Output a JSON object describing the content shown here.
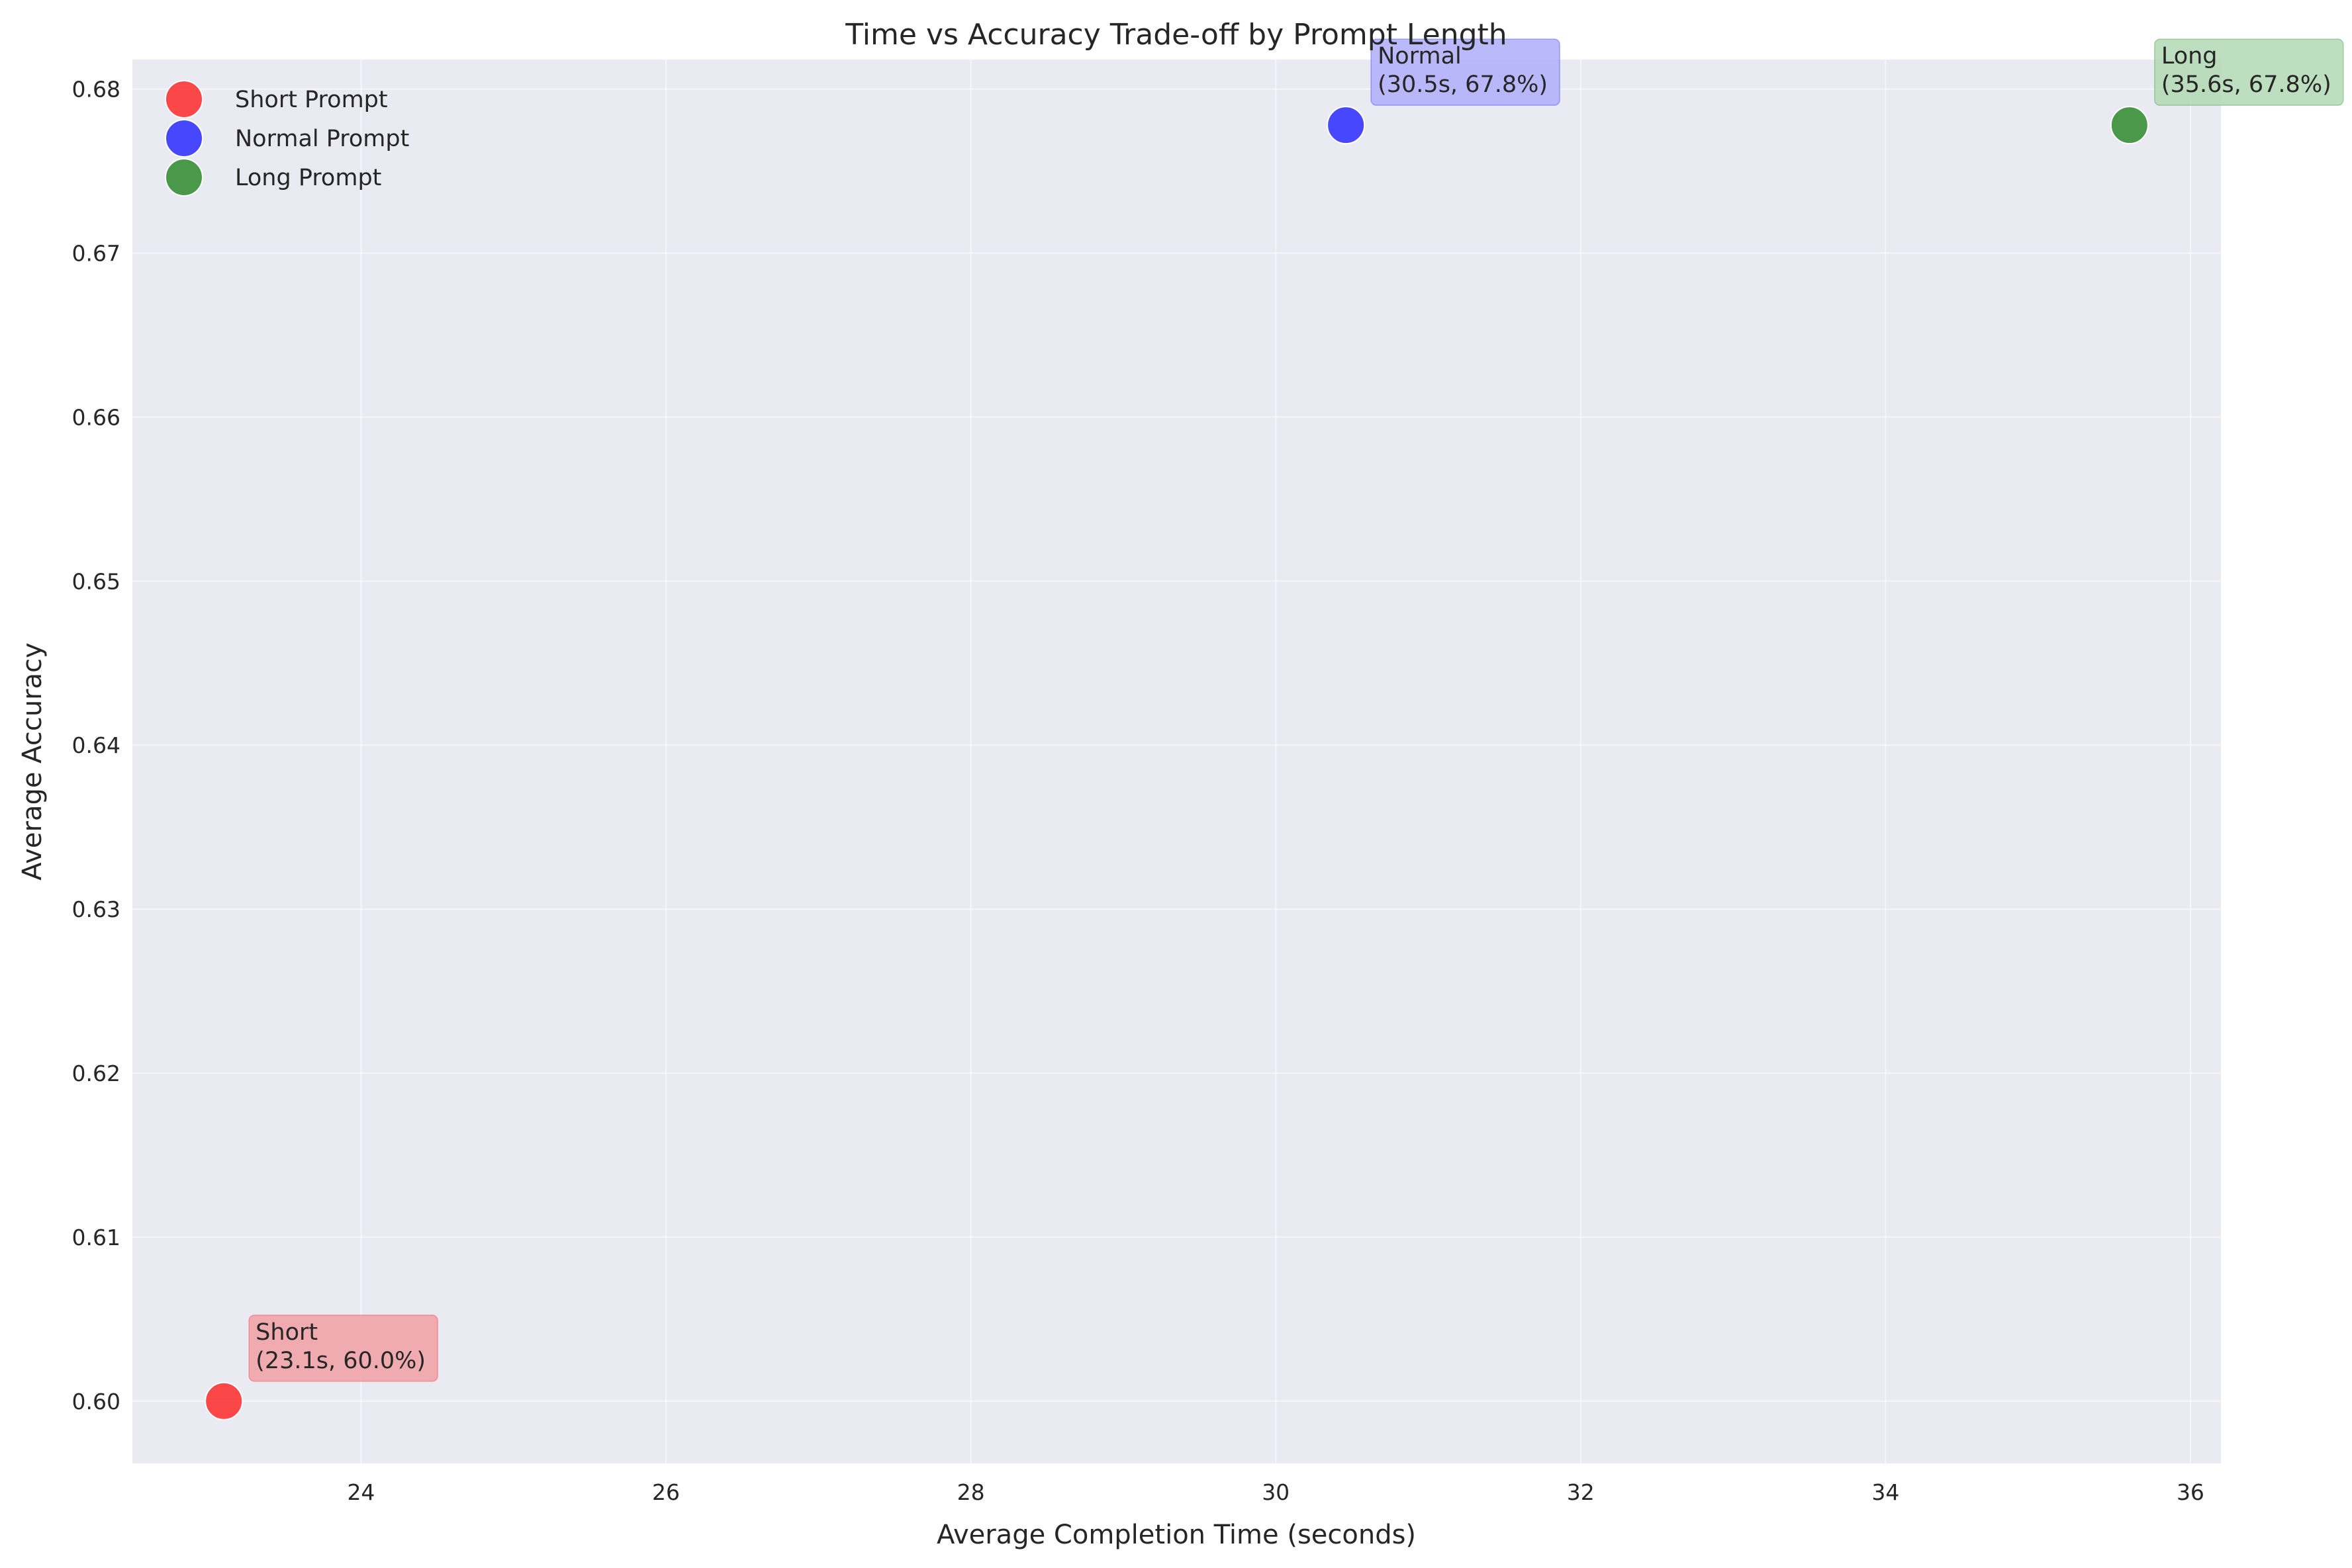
{
  "chart_data": {
    "type": "scatter",
    "title": "Time vs Accuracy Trade-off by Prompt Length",
    "xlabel": "Average Completion Time (seconds)",
    "ylabel": "Average Accuracy",
    "xlim": [
      22.5,
      36.2
    ],
    "ylim": [
      0.5962,
      0.6818
    ],
    "xticks": [
      24,
      26,
      28,
      30,
      32,
      34,
      36
    ],
    "yticks": [
      0.6,
      0.61,
      0.62,
      0.63,
      0.64,
      0.65,
      0.66,
      0.67,
      0.68
    ],
    "grid": true,
    "legend_position": "top-left",
    "background_color": "#eaeaf2",
    "series": [
      {
        "name": "Short Prompt",
        "color": "#ff2a2a",
        "annotation_bg": "#f1a0a6",
        "x": [
          23.1
        ],
        "y": [
          0.6
        ],
        "annotation": [
          "Short",
          "(23.1s, 60.0%)"
        ]
      },
      {
        "name": "Normal Prompt",
        "color": "#2a2aff",
        "annotation_bg": "#aeaefa",
        "x": [
          30.46
        ],
        "y": [
          0.6778
        ],
        "annotation": [
          "Normal",
          "(30.5s, 67.8%)"
        ]
      },
      {
        "name": "Long Prompt",
        "color": "#2e8b2e",
        "annotation_bg": "#b2d9b4",
        "x": [
          35.6
        ],
        "y": [
          0.6778
        ],
        "annotation": [
          "Long",
          "(35.6s, 67.8%)"
        ]
      }
    ]
  }
}
